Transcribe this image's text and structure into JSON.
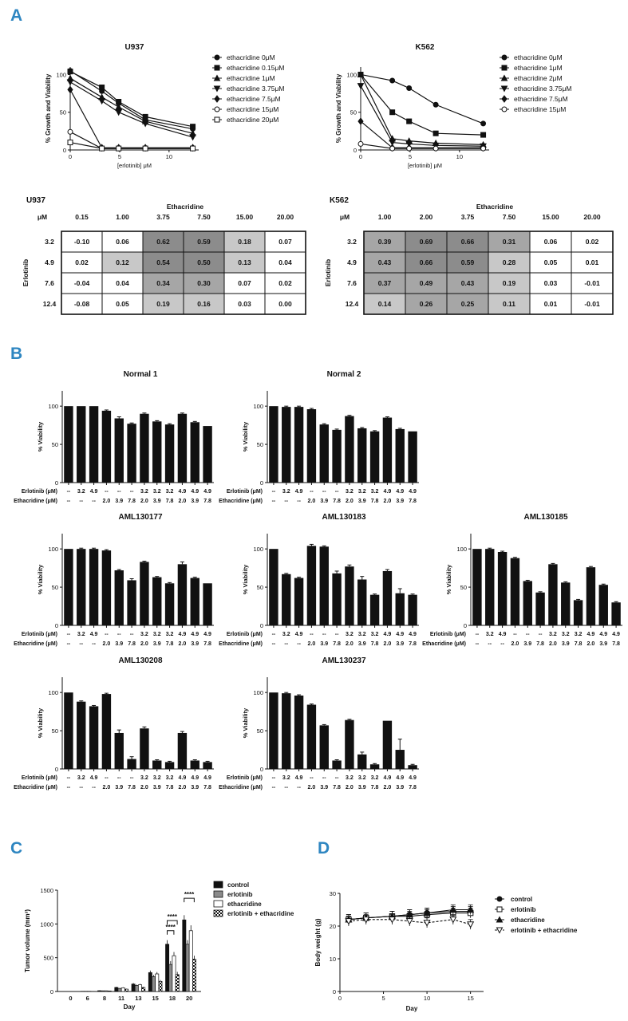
{
  "panel_labels": {
    "a": "A",
    "b": "B",
    "c": "C",
    "d": "D"
  },
  "colors": {
    "accent": "#2e86c1",
    "ink": "#111111",
    "grey_light": "#c8c8c8",
    "grey_mid": "#a6a6a6",
    "grey_dark": "#8c8c8c"
  },
  "chart_data": [
    {
      "id": "A1",
      "type": "line",
      "title": "U937",
      "xlabel": "[erlotinib] μM",
      "ylabel": "% Growth and Viability",
      "xlim": [
        0,
        13
      ],
      "ylim": [
        0,
        110
      ],
      "xticks": [
        0,
        5,
        10
      ],
      "yticks": [
        0,
        50,
        100
      ],
      "x": [
        0,
        3.2,
        4.9,
        7.6,
        12.4
      ],
      "series": [
        {
          "name": "ethacridine 0μM",
          "marker": "circle",
          "values": [
            105,
            78,
            62,
            40,
            28
          ]
        },
        {
          "name": "ethacridine 0.15μM",
          "marker": "square",
          "values": [
            104,
            83,
            64,
            44,
            31
          ]
        },
        {
          "name": "ethacridine 1μM",
          "marker": "triangle",
          "values": [
            95,
            70,
            57,
            38,
            22
          ]
        },
        {
          "name": "ethacridine 3.75μM",
          "marker": "tri-down",
          "values": [
            90,
            65,
            50,
            35,
            17
          ]
        },
        {
          "name": "ethacridine 7.5μM",
          "marker": "diamond",
          "values": [
            80,
            3,
            3,
            3,
            3
          ]
        },
        {
          "name": "ethacridine 15μM",
          "marker": "circle-open",
          "values": [
            24,
            2,
            2,
            2,
            2
          ]
        },
        {
          "name": "ethacridine 20μM",
          "marker": "square-open",
          "values": [
            10,
            2,
            2,
            2,
            2
          ]
        }
      ]
    },
    {
      "id": "A2",
      "type": "line",
      "title": "K562",
      "xlabel": "[erlotinib] μM",
      "ylabel": "% Growth and Viability",
      "xlim": [
        0,
        13
      ],
      "ylim": [
        0,
        110
      ],
      "xticks": [
        0,
        5,
        10
      ],
      "yticks": [
        0,
        50,
        100
      ],
      "x": [
        0,
        3.2,
        4.9,
        7.6,
        12.4
      ],
      "series": [
        {
          "name": "ethacridine 0μM",
          "marker": "circle",
          "values": [
            100,
            92,
            82,
            60,
            35
          ]
        },
        {
          "name": "ethacridine 1μM",
          "marker": "square",
          "values": [
            100,
            50,
            38,
            22,
            20
          ]
        },
        {
          "name": "ethacridine 2μM",
          "marker": "triangle",
          "values": [
            100,
            15,
            12,
            9,
            7
          ]
        },
        {
          "name": "ethacridine 3.75μM",
          "marker": "tri-down",
          "values": [
            85,
            10,
            8,
            6,
            5
          ]
        },
        {
          "name": "ethacridine 7.5μM",
          "marker": "diamond",
          "values": [
            38,
            3,
            3,
            3,
            3
          ]
        },
        {
          "name": "ethacridine 15μM",
          "marker": "circle-open",
          "values": [
            8,
            2,
            2,
            2,
            2
          ]
        }
      ]
    },
    {
      "id": "A3",
      "type": "table",
      "title": "U937",
      "col_header": "Ethacridine",
      "row_header": "Erlotinib",
      "corner": "μM",
      "columns": [
        "0.15",
        "1.00",
        "3.75",
        "7.50",
        "15.00",
        "20.00"
      ],
      "rows": [
        "3.2",
        "4.9",
        "7.6",
        "12.4"
      ],
      "values": [
        [
          "-0.10",
          "0.06",
          "0.62",
          "0.59",
          "0.18",
          "0.07"
        ],
        [
          "0.02",
          "0.12",
          "0.54",
          "0.50",
          "0.13",
          "0.04"
        ],
        [
          "-0.04",
          "0.04",
          "0.34",
          "0.30",
          "0.07",
          "0.02"
        ],
        [
          "-0.08",
          "0.05",
          "0.19",
          "0.16",
          "0.03",
          "0.00"
        ]
      ],
      "shade": [
        [
          0,
          0,
          3,
          3,
          1,
          0
        ],
        [
          0,
          1,
          3,
          3,
          1,
          0
        ],
        [
          0,
          0,
          2,
          2,
          0,
          0
        ],
        [
          0,
          0,
          1,
          1,
          0,
          0
        ]
      ]
    },
    {
      "id": "A4",
      "type": "table",
      "title": "K562",
      "col_header": "Ethacridine",
      "row_header": "Erlotinib",
      "corner": "μM",
      "columns": [
        "1.00",
        "2.00",
        "3.75",
        "7.50",
        "15.00",
        "20.00"
      ],
      "rows": [
        "3.2",
        "4.9",
        "7.6",
        "12.4"
      ],
      "values": [
        [
          "0.39",
          "0.69",
          "0.66",
          "0.31",
          "0.06",
          "0.02"
        ],
        [
          "0.43",
          "0.66",
          "0.59",
          "0.28",
          "0.05",
          "0.01"
        ],
        [
          "0.37",
          "0.49",
          "0.43",
          "0.19",
          "0.03",
          "-0.01"
        ],
        [
          "0.14",
          "0.26",
          "0.25",
          "0.11",
          "0.01",
          "-0.01"
        ]
      ],
      "shade": [
        [
          2,
          3,
          3,
          2,
          0,
          0
        ],
        [
          2,
          3,
          3,
          1,
          0,
          0
        ],
        [
          2,
          2,
          2,
          1,
          0,
          0
        ],
        [
          1,
          2,
          2,
          1,
          0,
          0
        ]
      ]
    },
    {
      "id": "B1",
      "type": "bar",
      "title": "Normal 1",
      "ylabel": "% Viability",
      "ylim": [
        0,
        120
      ],
      "yticks": [
        0,
        50,
        100
      ],
      "row1_label": "Erlotinib (μM)",
      "row2_label": "Ethacridine (μM)",
      "erlotinib": [
        "--",
        "3.2",
        "4.9",
        "--",
        "--",
        "--",
        "3.2",
        "3.2",
        "3.2",
        "4.9",
        "4.9",
        "4.9"
      ],
      "ethacridine": [
        "--",
        "--",
        "--",
        "2.0",
        "3.9",
        "7.8",
        "2.0",
        "3.9",
        "7.8",
        "2.0",
        "3.9",
        "7.8"
      ],
      "values": [
        100,
        100,
        100,
        94,
        84,
        77,
        90,
        80,
        76,
        90,
        79,
        74
      ],
      "errors": [
        0,
        0,
        0,
        1,
        2,
        1,
        1,
        1,
        1,
        1,
        1,
        0
      ]
    },
    {
      "id": "B2",
      "type": "bar",
      "title": "Normal 2",
      "ylabel": "% Viability",
      "ylim": [
        0,
        120
      ],
      "yticks": [
        0,
        50,
        100
      ],
      "row1_label": "Erlotinib (μM)",
      "row2_label": "Ethacridine (μM)",
      "erlotinib": [
        "--",
        "3.2",
        "4.9",
        "--",
        "--",
        "--",
        "3.2",
        "3.2",
        "3.2",
        "4.9",
        "4.9",
        "4.9"
      ],
      "ethacridine": [
        "--",
        "--",
        "--",
        "2.0",
        "3.9",
        "7.8",
        "2.0",
        "3.9",
        "7.8",
        "2.0",
        "3.9",
        "7.8"
      ],
      "values": [
        100,
        99,
        99,
        96,
        76,
        69,
        87,
        71,
        67,
        85,
        70,
        67
      ],
      "errors": [
        0,
        1,
        1,
        1,
        1,
        1,
        1,
        1,
        1,
        1,
        1,
        0
      ]
    },
    {
      "id": "B3",
      "type": "bar",
      "title": "AML130177",
      "ylabel": "% Viability",
      "ylim": [
        0,
        120
      ],
      "yticks": [
        0,
        50,
        100
      ],
      "row1_label": "Erlotinib (μM)",
      "row2_label": "Ethacridine (μM)",
      "erlotinib": [
        "--",
        "3.2",
        "4.9",
        "--",
        "--",
        "--",
        "3.2",
        "3.2",
        "3.2",
        "4.9",
        "4.9",
        "4.9"
      ],
      "ethacridine": [
        "--",
        "--",
        "--",
        "2.0",
        "3.9",
        "7.8",
        "2.0",
        "3.9",
        "7.8",
        "2.0",
        "3.9",
        "7.8"
      ],
      "values": [
        100,
        100,
        100,
        98,
        72,
        59,
        83,
        63,
        55,
        80,
        62,
        55
      ],
      "errors": [
        0,
        1,
        1,
        1,
        1,
        2,
        1,
        1,
        1,
        3,
        1,
        0
      ]
    },
    {
      "id": "B4",
      "type": "bar",
      "title": "AML130183",
      "ylabel": "% Viability",
      "ylim": [
        0,
        120
      ],
      "yticks": [
        0,
        50,
        100
      ],
      "row1_label": "Erlotinib (μM)",
      "row2_label": "Ethacridine (μM)",
      "erlotinib": [
        "--",
        "3.2",
        "4.9",
        "--",
        "--",
        "--",
        "3.2",
        "3.2",
        "3.2",
        "4.9",
        "4.9",
        "4.9"
      ],
      "ethacridine": [
        "--",
        "--",
        "--",
        "2.0",
        "3.9",
        "7.8",
        "2.0",
        "3.9",
        "7.8",
        "2.0",
        "3.9",
        "7.8"
      ],
      "values": [
        100,
        67,
        62,
        104,
        103,
        68,
        77,
        60,
        40,
        71,
        42,
        40
      ],
      "errors": [
        0,
        1,
        1,
        2,
        1,
        3,
        2,
        4,
        1,
        2,
        6,
        1
      ]
    },
    {
      "id": "B5",
      "type": "bar",
      "title": "AML130185",
      "ylabel": "% Viability",
      "ylim": [
        0,
        120
      ],
      "yticks": [
        0,
        50,
        100
      ],
      "row1_label": "Erlotinib (μM)",
      "row2_label": "Ethacridine (μM)",
      "erlotinib": [
        "--",
        "3.2",
        "4.9",
        "--",
        "--",
        "--",
        "3.2",
        "3.2",
        "3.2",
        "4.9",
        "4.9",
        "4.9"
      ],
      "ethacridine": [
        "--",
        "--",
        "--",
        "2.0",
        "3.9",
        "7.8",
        "2.0",
        "3.9",
        "7.8",
        "2.0",
        "3.9",
        "7.8"
      ],
      "values": [
        100,
        100,
        96,
        88,
        58,
        43,
        80,
        56,
        33,
        76,
        53,
        30
      ],
      "errors": [
        0,
        1,
        1,
        1,
        1,
        1,
        1,
        1,
        1,
        1,
        1,
        1
      ]
    },
    {
      "id": "B6",
      "type": "bar",
      "title": "AML130208",
      "ylabel": "% Viability",
      "ylim": [
        0,
        120
      ],
      "yticks": [
        0,
        50,
        100
      ],
      "row1_label": "Erlotinib (μM)",
      "row2_label": "Ethacridine (μM)",
      "erlotinib": [
        "--",
        "3.2",
        "4.9",
        "--",
        "--",
        "--",
        "3.2",
        "3.2",
        "3.2",
        "4.9",
        "4.9",
        "4.9"
      ],
      "ethacridine": [
        "--",
        "--",
        "--",
        "2.0",
        "3.9",
        "7.8",
        "2.0",
        "3.9",
        "7.8",
        "2.0",
        "3.9",
        "7.8"
      ],
      "values": [
        100,
        88,
        82,
        98,
        47,
        13,
        53,
        11,
        9,
        47,
        11,
        9
      ],
      "errors": [
        0,
        1,
        1,
        1,
        4,
        3,
        2,
        1,
        1,
        2,
        1,
        1
      ]
    },
    {
      "id": "B7",
      "type": "bar",
      "title": "AML130237",
      "ylabel": "% Viability",
      "ylim": [
        0,
        120
      ],
      "yticks": [
        0,
        50,
        100
      ],
      "row1_label": "Erlotinib (μM)",
      "row2_label": "Ethacridine (μM)",
      "erlotinib": [
        "--",
        "3.2",
        "4.9",
        "--",
        "--",
        "--",
        "3.2",
        "3.2",
        "3.2",
        "4.9",
        "4.9",
        "4.9"
      ],
      "ethacridine": [
        "--",
        "--",
        "--",
        "2.0",
        "3.9",
        "7.8",
        "2.0",
        "3.9",
        "7.8",
        "2.0",
        "3.9",
        "7.8"
      ],
      "values": [
        100,
        99,
        96,
        84,
        57,
        11,
        64,
        19,
        6,
        63,
        25,
        5
      ],
      "errors": [
        0,
        1,
        1,
        1,
        1,
        1,
        1,
        3,
        1,
        0,
        14,
        1
      ]
    },
    {
      "id": "C",
      "type": "bar",
      "xlabel": "Day",
      "ylabel": "Tumor volume (mm³)",
      "ylim": [
        0,
        1500
      ],
      "yticks": [
        0,
        500,
        1000,
        1500
      ],
      "categories": [
        "0",
        "6",
        "8",
        "11",
        "13",
        "15",
        "18",
        "20"
      ],
      "series": [
        {
          "name": "control",
          "style": "black",
          "values": [
            0,
            3,
            12,
            60,
            110,
            280,
            700,
            1060
          ],
          "errors": [
            0,
            2,
            4,
            10,
            15,
            30,
            60,
            70
          ]
        },
        {
          "name": "erlotinib",
          "style": "grey",
          "values": [
            0,
            3,
            10,
            45,
            90,
            220,
            400,
            700
          ],
          "errors": [
            0,
            2,
            3,
            8,
            12,
            25,
            50,
            60
          ]
        },
        {
          "name": "ethacridine",
          "style": "white",
          "values": [
            0,
            3,
            10,
            55,
            100,
            260,
            530,
            900
          ],
          "errors": [
            0,
            2,
            3,
            9,
            13,
            28,
            55,
            80
          ]
        },
        {
          "name": "erlotinib + ethacridine",
          "style": "checker",
          "values": [
            0,
            2,
            8,
            35,
            60,
            150,
            250,
            480
          ],
          "errors": [
            0,
            1,
            3,
            6,
            10,
            20,
            40,
            50
          ]
        }
      ],
      "annotations": [
        "****",
        "****",
        "****"
      ]
    },
    {
      "id": "D",
      "type": "line",
      "xlabel": "Day",
      "ylabel": "Body weight (g)",
      "xlim": [
        0,
        16.5
      ],
      "ylim": [
        0,
        30
      ],
      "xticks": [
        0,
        5,
        10,
        15
      ],
      "yticks": [
        0,
        10,
        20,
        30
      ],
      "x": [
        1,
        3,
        6,
        8,
        10,
        13,
        15
      ],
      "series": [
        {
          "name": "control",
          "marker": "circle",
          "line": "solid",
          "values": [
            22,
            22.5,
            23,
            23.5,
            24,
            24.5,
            24.5
          ],
          "errors": [
            1.5,
            1.5,
            1.5,
            1.5,
            1.5,
            1.5,
            1.5
          ]
        },
        {
          "name": "erlotinib",
          "marker": "square-open",
          "line": "solid",
          "values": [
            22,
            22.5,
            23,
            23,
            23.5,
            24,
            24
          ],
          "errors": [
            1.5,
            1.5,
            1.5,
            1.5,
            1.5,
            1.5,
            1.5
          ]
        },
        {
          "name": "ethacridine",
          "marker": "triangle",
          "line": "solid",
          "values": [
            22,
            22.5,
            23,
            23.5,
            24,
            25,
            25
          ],
          "errors": [
            1.5,
            1.5,
            1.5,
            1.5,
            1.5,
            1.5,
            1.5
          ]
        },
        {
          "name": "erlotinib + ethacridine",
          "marker": "tri-down-open",
          "line": "dashed",
          "values": [
            21.5,
            22,
            22,
            21.5,
            21,
            22,
            20.5
          ],
          "errors": [
            1.5,
            1.5,
            1.5,
            1.5,
            1.5,
            1.5,
            1.5
          ]
        }
      ]
    }
  ]
}
